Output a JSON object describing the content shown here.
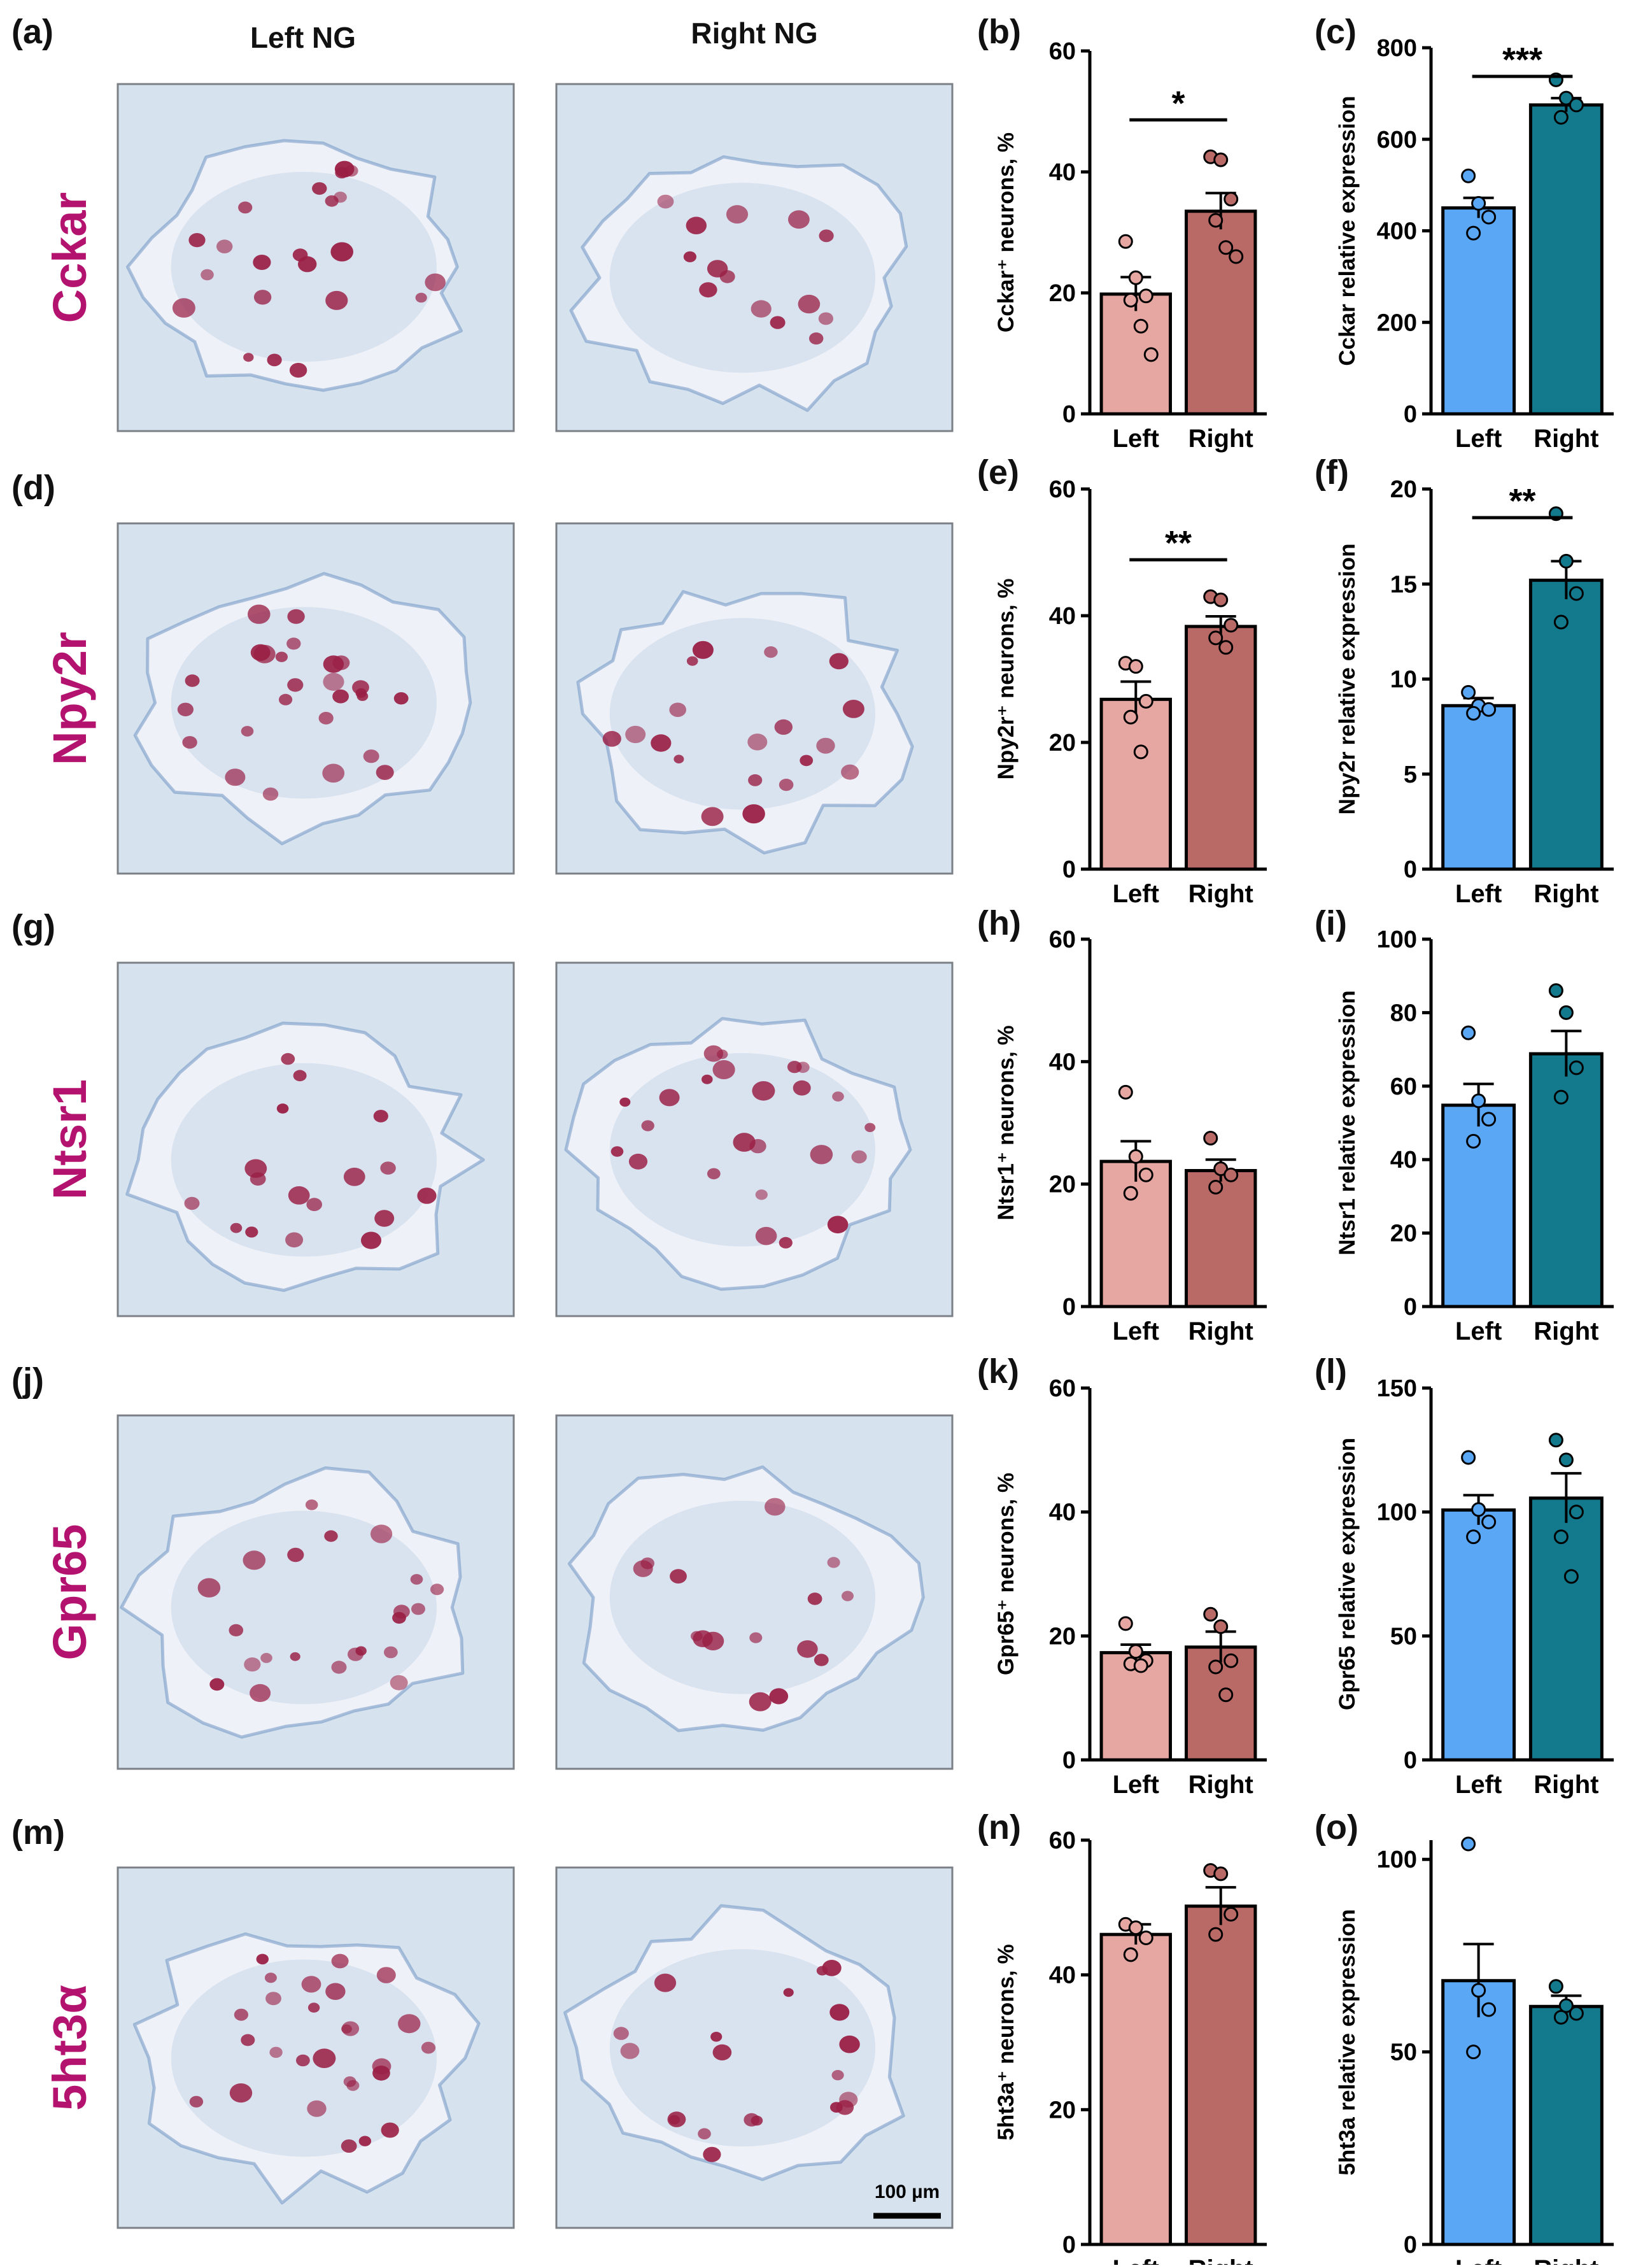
{
  "figure": {
    "column_headers": [
      "Left NG",
      "Right NG"
    ],
    "scale_bar_label": "100 µm",
    "colors": {
      "gene_label": "#b3136f",
      "left_pct_bar": "#e6a6a2",
      "right_pct_bar": "#b96a67",
      "left_expr_bar": "#5aa7f5",
      "right_expr_bar": "#13798c",
      "tissue_bg": "#d6e2ee",
      "stain": "#9a1f45",
      "counterstain": "#6f93c4"
    },
    "rows": [
      {
        "gene": "Cckar",
        "image_panel": "(a)"
      },
      {
        "gene": "Npy2r",
        "image_panel": "(d)"
      },
      {
        "gene": "Ntsr1",
        "image_panel": "(g)"
      },
      {
        "gene": "Gpr65",
        "image_panel": "(j)"
      },
      {
        "gene": "5ht3α",
        "image_panel": "(m)"
      }
    ]
  },
  "chart_data": [
    {
      "panel": "(b)",
      "type": "bar",
      "categories": [
        "Left",
        "Right"
      ],
      "values": [
        19.8,
        33.5
      ],
      "errors": [
        2.8,
        3.0
      ],
      "points": [
        [
          28.5,
          22.5,
          19.5,
          18.8,
          14.5,
          9.8
        ],
        [
          42.5,
          42.0,
          35.5,
          32.0,
          27.5,
          26.0
        ]
      ],
      "ylabel": "Cckar⁺ neurons, %",
      "ylim": [
        0,
        60
      ],
      "yticks": [
        0,
        20,
        40,
        60
      ],
      "significance": "*",
      "colors": [
        "#e6a6a2",
        "#b96a67"
      ]
    },
    {
      "panel": "(c)",
      "type": "bar",
      "categories": [
        "Left",
        "Right"
      ],
      "values": [
        450,
        675
      ],
      "errors": [
        22,
        15
      ],
      "points": [
        [
          520,
          460,
          430,
          395
        ],
        [
          730,
          690,
          675,
          648
        ]
      ],
      "ylabel": "Cckar relative expression",
      "ylim": [
        0,
        800
      ],
      "yticks": [
        0,
        200,
        400,
        600,
        800
      ],
      "significance": "***",
      "colors": [
        "#5aa7f5",
        "#13798c"
      ]
    },
    {
      "panel": "(e)",
      "type": "bar",
      "categories": [
        "Left",
        "Right"
      ],
      "values": [
        26.8,
        38.3
      ],
      "errors": [
        2.8,
        1.6
      ],
      "points": [
        [
          32.5,
          32.0,
          26.5,
          24.0,
          18.5
        ],
        [
          43.0,
          42.5,
          38.5,
          36.5,
          35.0
        ]
      ],
      "ylabel": "Npy2r⁺ neurons, %",
      "ylim": [
        0,
        60
      ],
      "yticks": [
        0,
        20,
        40,
        60
      ],
      "significance": "**",
      "colors": [
        "#e6a6a2",
        "#b96a67"
      ]
    },
    {
      "panel": "(f)",
      "type": "bar",
      "categories": [
        "Left",
        "Right"
      ],
      "values": [
        8.6,
        15.2
      ],
      "errors": [
        0.4,
        1.0
      ],
      "points": [
        [
          9.3,
          8.6,
          8.4,
          8.2
        ],
        [
          18.7,
          16.2,
          14.5,
          13.0
        ]
      ],
      "ylabel": "Npy2r relative expression",
      "ylim": [
        0,
        20
      ],
      "yticks": [
        0,
        5,
        10,
        15,
        20
      ],
      "significance": "**",
      "colors": [
        "#5aa7f5",
        "#13798c"
      ]
    },
    {
      "panel": "(h)",
      "type": "bar",
      "categories": [
        "Left",
        "Right"
      ],
      "values": [
        23.7,
        22.2
      ],
      "errors": [
        3.3,
        1.8
      ],
      "points": [
        [
          35.0,
          24.5,
          21.5,
          18.5
        ],
        [
          27.5,
          22.5,
          21.5,
          19.5
        ]
      ],
      "ylabel": "Ntsr1⁺ neurons, %",
      "ylim": [
        0,
        60
      ],
      "yticks": [
        0,
        20,
        40,
        60
      ],
      "significance": "",
      "colors": [
        "#e6a6a2",
        "#b96a67"
      ]
    },
    {
      "panel": "(i)",
      "type": "bar",
      "categories": [
        "Left",
        "Right"
      ],
      "values": [
        54.8,
        68.8
      ],
      "errors": [
        5.8,
        6.2
      ],
      "points": [
        [
          74.5,
          56.0,
          51.0,
          45.0
        ],
        [
          86.0,
          80.0,
          65.0,
          57.0
        ]
      ],
      "ylabel": "Ntsr1 relative expression",
      "ylim": [
        0,
        100
      ],
      "yticks": [
        0,
        20,
        40,
        60,
        80,
        100
      ],
      "significance": "",
      "colors": [
        "#5aa7f5",
        "#13798c"
      ]
    },
    {
      "panel": "(k)",
      "type": "bar",
      "categories": [
        "Left",
        "Right"
      ],
      "values": [
        17.3,
        18.2
      ],
      "errors": [
        1.3,
        2.5
      ],
      "points": [
        [
          22.0,
          17.5,
          16.0,
          15.5,
          15.2
        ],
        [
          23.5,
          21.5,
          16.0,
          15.0,
          10.5
        ]
      ],
      "ylabel": "Gpr65⁺ neurons, %",
      "ylim": [
        0,
        60
      ],
      "yticks": [
        0,
        20,
        40,
        60
      ],
      "significance": "",
      "colors": [
        "#e6a6a2",
        "#b96a67"
      ]
    },
    {
      "panel": "(l)",
      "type": "bar",
      "categories": [
        "Left",
        "Right"
      ],
      "values": [
        100.8,
        105.6
      ],
      "errors": [
        6.0,
        10.0
      ],
      "points": [
        [
          122.0,
          101.0,
          96.0,
          90.0
        ],
        [
          129.0,
          121.0,
          100.0,
          90.0,
          74.0
        ]
      ],
      "ylabel": "Gpr65 relative expression",
      "ylim": [
        0,
        150
      ],
      "yticks": [
        0,
        50,
        100,
        150
      ],
      "significance": "",
      "colors": [
        "#5aa7f5",
        "#13798c"
      ]
    },
    {
      "panel": "(n)",
      "type": "bar",
      "categories": [
        "Left",
        "Right"
      ],
      "values": [
        46.0,
        50.2
      ],
      "errors": [
        1.5,
        2.8
      ],
      "points": [
        [
          47.5,
          47.0,
          45.5,
          43.0
        ],
        [
          55.5,
          55.0,
          49.0,
          46.0
        ]
      ],
      "ylabel": "5ht3a⁺ neurons, %",
      "ylim": [
        0,
        60
      ],
      "yticks": [
        0,
        20,
        40,
        60
      ],
      "significance": "",
      "colors": [
        "#e6a6a2",
        "#b96a67"
      ]
    },
    {
      "panel": "(o)",
      "type": "bar",
      "categories": [
        "Left",
        "Right"
      ],
      "values": [
        68.5,
        61.8
      ],
      "errors": [
        9.5,
        2.8
      ],
      "points": [
        [
          104.0,
          66.0,
          61.0,
          50.0
        ],
        [
          67.0,
          62.0,
          60.0,
          59.0
        ]
      ],
      "ylabel": "5ht3a relative expression",
      "ylim": [
        0,
        105
      ],
      "yticks": [
        0,
        50,
        100
      ],
      "significance": "",
      "colors": [
        "#5aa7f5",
        "#13798c"
      ]
    }
  ]
}
